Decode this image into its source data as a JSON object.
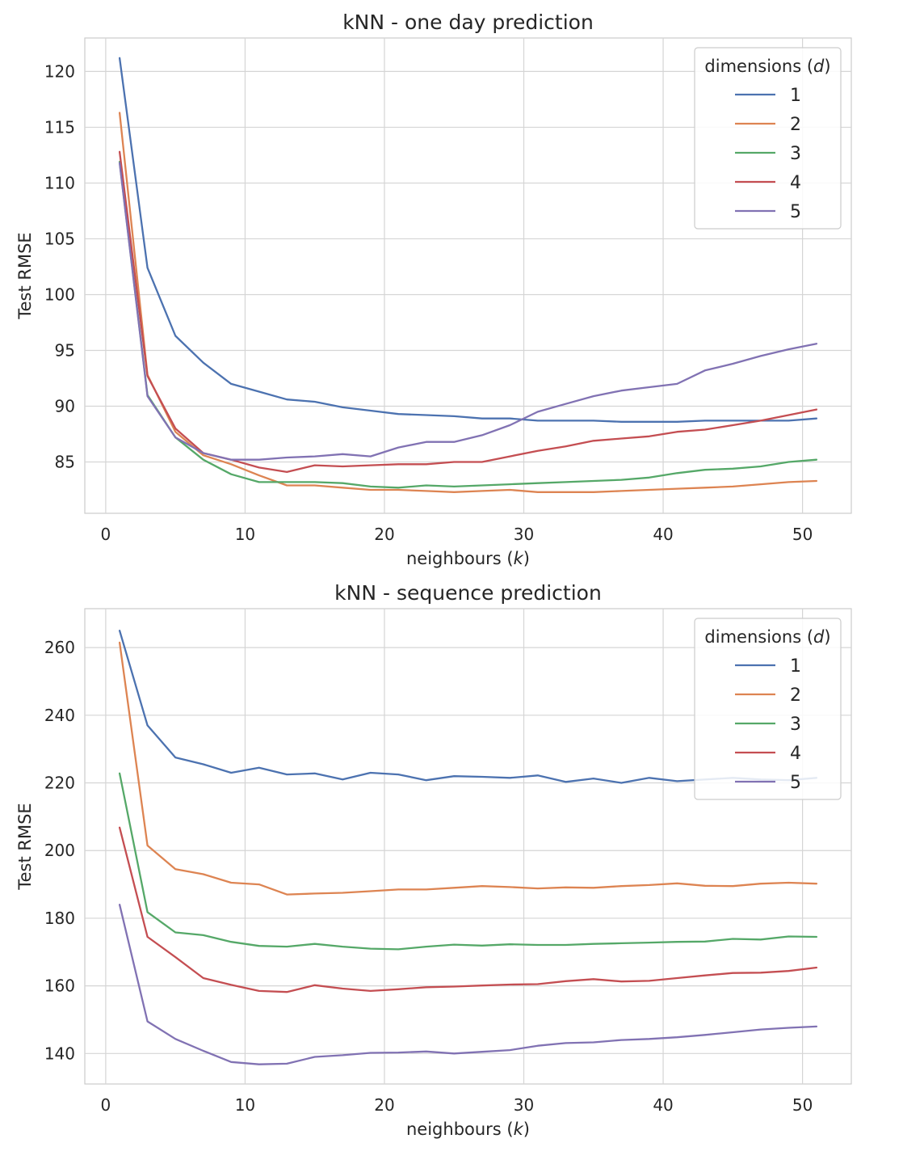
{
  "chart_data": [
    {
      "type": "line",
      "title": "kNN - one day prediction",
      "xlabel": "neighbours (k)",
      "xlabel_parts": [
        "neighbours (",
        "k",
        ")"
      ],
      "ylabel": "Test RMSE",
      "xlim": [
        -1.5,
        53.5
      ],
      "ylim": [
        80.4,
        123
      ],
      "xticks": [
        0,
        10,
        20,
        30,
        40,
        50
      ],
      "yticks": [
        85,
        90,
        95,
        100,
        105,
        110,
        115,
        120
      ],
      "grid": true,
      "legend": {
        "title": "dimensions (d)",
        "title_parts": [
          "dimensions (",
          "d",
          ")"
        ],
        "placement": "top-right"
      },
      "x": [
        1,
        3,
        5,
        7,
        9,
        11,
        13,
        15,
        17,
        19,
        21,
        23,
        25,
        27,
        29,
        31,
        33,
        35,
        37,
        39,
        41,
        43,
        45,
        47,
        49,
        51
      ],
      "series": [
        {
          "name": "1",
          "color": "#4c72b0",
          "values": [
            121.2,
            102.4,
            96.3,
            93.9,
            92.0,
            91.3,
            90.6,
            90.4,
            89.9,
            89.6,
            89.3,
            89.2,
            89.1,
            88.9,
            88.9,
            88.7,
            88.7,
            88.7,
            88.6,
            88.6,
            88.6,
            88.7,
            88.7,
            88.7,
            88.7,
            88.9
          ]
        },
        {
          "name": "2",
          "color": "#dd8452",
          "values": [
            116.3,
            92.8,
            87.7,
            85.6,
            84.8,
            83.8,
            82.9,
            82.9,
            82.7,
            82.5,
            82.5,
            82.4,
            82.3,
            82.4,
            82.5,
            82.3,
            82.3,
            82.3,
            82.4,
            82.5,
            82.6,
            82.7,
            82.8,
            83.0,
            83.2,
            83.3
          ]
        },
        {
          "name": "3",
          "color": "#55a868",
          "values": [
            111.9,
            91.0,
            87.2,
            85.2,
            83.9,
            83.2,
            83.2,
            83.2,
            83.1,
            82.8,
            82.7,
            82.9,
            82.8,
            82.9,
            83.0,
            83.1,
            83.2,
            83.3,
            83.4,
            83.6,
            84.0,
            84.3,
            84.4,
            84.6,
            85.0,
            85.2
          ]
        },
        {
          "name": "4",
          "color": "#c44e52",
          "values": [
            112.8,
            92.7,
            88.0,
            85.8,
            85.2,
            84.5,
            84.1,
            84.7,
            84.6,
            84.7,
            84.8,
            84.8,
            85.0,
            85.0,
            85.5,
            86.0,
            86.4,
            86.9,
            87.1,
            87.3,
            87.7,
            87.9,
            88.3,
            88.7,
            89.2,
            89.7
          ]
        },
        {
          "name": "5",
          "color": "#8172b3",
          "values": [
            111.8,
            90.9,
            87.2,
            85.8,
            85.2,
            85.2,
            85.4,
            85.5,
            85.7,
            85.5,
            86.3,
            86.8,
            86.8,
            87.4,
            88.3,
            89.5,
            90.2,
            90.9,
            91.4,
            91.7,
            92.0,
            93.2,
            93.8,
            94.5,
            95.1,
            95.6
          ]
        }
      ]
    },
    {
      "type": "line",
      "title": "kNN - sequence prediction",
      "xlabel": "neighbours (k)",
      "xlabel_parts": [
        "neighbours (",
        "k",
        ")"
      ],
      "ylabel": "Test RMSE",
      "xlim": [
        -1.5,
        53.5
      ],
      "ylim": [
        131,
        271.5
      ],
      "xticks": [
        0,
        10,
        20,
        30,
        40,
        50
      ],
      "yticks": [
        140,
        160,
        180,
        200,
        220,
        240,
        260
      ],
      "grid": true,
      "legend": {
        "title": "dimensions (d)",
        "title_parts": [
          "dimensions (",
          "d",
          ")"
        ],
        "placement": "top-right"
      },
      "x": [
        1,
        3,
        5,
        7,
        9,
        11,
        13,
        15,
        17,
        19,
        21,
        23,
        25,
        27,
        29,
        31,
        33,
        35,
        37,
        39,
        41,
        43,
        45,
        47,
        49,
        51
      ],
      "series": [
        {
          "name": "1",
          "color": "#4c72b0",
          "values": [
            265.0,
            237.0,
            227.5,
            225.5,
            223.0,
            224.5,
            222.5,
            222.8,
            221.0,
            223.0,
            222.5,
            220.8,
            222.0,
            221.8,
            221.5,
            222.2,
            220.3,
            221.3,
            220.0,
            221.5,
            220.5,
            221.0,
            221.5,
            221.0,
            220.8,
            221.5
          ]
        },
        {
          "name": "2",
          "color": "#dd8452",
          "values": [
            261.5,
            201.5,
            194.5,
            193.0,
            190.5,
            190.0,
            187.0,
            187.3,
            187.5,
            188.0,
            188.5,
            188.5,
            189.0,
            189.5,
            189.2,
            188.8,
            189.1,
            189.0,
            189.5,
            189.8,
            190.3,
            189.6,
            189.5,
            190.2,
            190.5,
            190.2
          ]
        },
        {
          "name": "3",
          "color": "#55a868",
          "values": [
            222.8,
            181.8,
            175.8,
            175.0,
            173.0,
            171.8,
            171.6,
            172.4,
            171.6,
            171.0,
            170.8,
            171.6,
            172.2,
            171.9,
            172.3,
            172.1,
            172.1,
            172.4,
            172.6,
            172.8,
            173.0,
            173.1,
            173.9,
            173.7,
            174.6,
            174.5
          ]
        },
        {
          "name": "4",
          "color": "#c44e52",
          "values": [
            206.8,
            174.5,
            168.5,
            162.3,
            160.3,
            158.5,
            158.2,
            160.2,
            159.2,
            158.5,
            159.0,
            159.6,
            159.8,
            160.1,
            160.4,
            160.5,
            161.4,
            162.0,
            161.3,
            161.5,
            162.3,
            163.1,
            163.8,
            163.9,
            164.4,
            165.4
          ]
        },
        {
          "name": "5",
          "color": "#8172b3",
          "values": [
            184.0,
            149.5,
            144.3,
            140.8,
            137.5,
            136.8,
            137.0,
            139.0,
            139.5,
            140.2,
            140.3,
            140.6,
            140.0,
            140.5,
            141.0,
            142.3,
            143.1,
            143.3,
            144.0,
            144.3,
            144.8,
            145.5,
            146.3,
            147.1,
            147.6,
            148.0
          ]
        }
      ]
    }
  ]
}
